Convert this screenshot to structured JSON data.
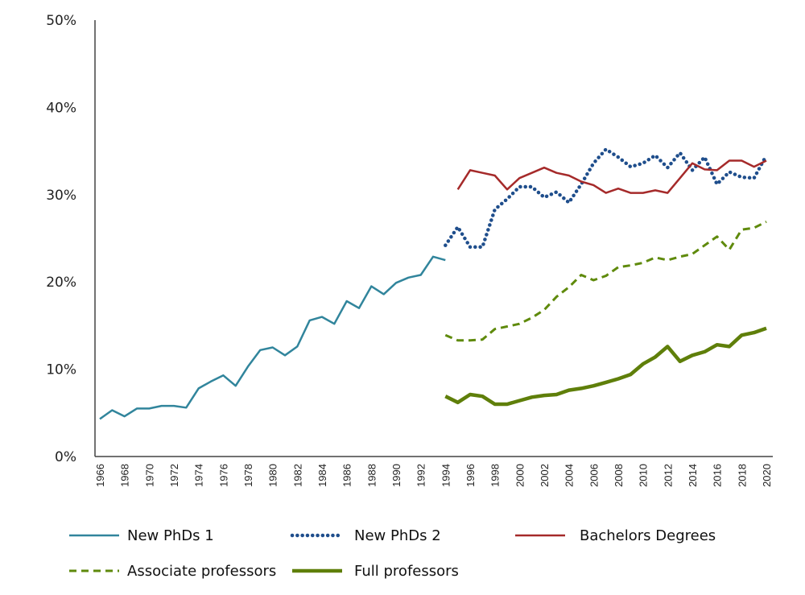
{
  "chart_data": {
    "type": "line",
    "title": "",
    "xlabel": "",
    "ylabel": "",
    "ylim": [
      0,
      50
    ],
    "yticks": [
      "0%",
      "10%",
      "20%",
      "30%",
      "40%",
      "50%"
    ],
    "ytick_values": [
      0,
      10,
      20,
      30,
      40,
      50
    ],
    "xlim": [
      1966,
      2020
    ],
    "xticks": [
      "1966",
      "1968",
      "1970",
      "1972",
      "1974",
      "1976",
      "1978",
      "1980",
      "1982",
      "1984",
      "1986",
      "1988",
      "1990",
      "1992",
      "1994",
      "1996",
      "1998",
      "2000",
      "2002",
      "2004",
      "2006",
      "2008",
      "2010",
      "2012",
      "2014",
      "2016",
      "2018",
      "2020"
    ],
    "grid": false,
    "legend_position": "bottom",
    "series": [
      {
        "name": "New PhDs 1",
        "color": "#31859c",
        "style": "solid",
        "x": [
          1966,
          1967,
          1968,
          1969,
          1970,
          1971,
          1972,
          1973,
          1974,
          1975,
          1976,
          1977,
          1978,
          1979,
          1980,
          1981,
          1982,
          1983,
          1984,
          1985,
          1986,
          1987,
          1988,
          1989,
          1990,
          1991,
          1992,
          1993,
          1994
        ],
        "values": [
          4.3,
          5.3,
          4.6,
          5.5,
          5.5,
          5.8,
          5.8,
          5.6,
          7.8,
          8.6,
          9.3,
          8.1,
          10.3,
          12.2,
          12.5,
          11.6,
          12.6,
          15.6,
          16.0,
          15.2,
          17.8,
          17.0,
          19.5,
          18.6,
          19.9,
          20.5,
          20.8,
          22.9,
          22.5
        ]
      },
      {
        "name": "New PhDs 2",
        "color": "#1f4e8c",
        "style": "dotted",
        "x": [
          1994,
          1995,
          1996,
          1997,
          1998,
          1999,
          2000,
          2001,
          2002,
          2003,
          2004,
          2005,
          2006,
          2007,
          2008,
          2009,
          2010,
          2011,
          2012,
          2013,
          2014,
          2015,
          2016,
          2017,
          2018,
          2019,
          2020
        ],
        "values": [
          24.2,
          26.3,
          24.0,
          24.0,
          28.3,
          29.5,
          30.9,
          30.9,
          29.7,
          30.3,
          29.1,
          31.2,
          33.6,
          35.2,
          34.3,
          33.2,
          33.6,
          34.5,
          33.1,
          34.8,
          32.8,
          34.3,
          31.2,
          32.6,
          32.0,
          31.9,
          34.5
        ]
      },
      {
        "name": "Bachelors Degrees",
        "color": "#a52a2a",
        "style": "solid",
        "x": [
          1995,
          1996,
          1997,
          1998,
          1999,
          2000,
          2001,
          2002,
          2003,
          2004,
          2005,
          2006,
          2007,
          2008,
          2009,
          2010,
          2011,
          2012,
          2013,
          2014,
          2015,
          2016,
          2017,
          2018,
          2019,
          2020
        ],
        "values": [
          30.6,
          32.8,
          32.5,
          32.2,
          30.6,
          31.9,
          32.5,
          33.1,
          32.5,
          32.2,
          31.5,
          31.1,
          30.2,
          30.7,
          30.2,
          30.2,
          30.5,
          30.2,
          31.9,
          33.6,
          32.9,
          32.8,
          33.9,
          33.9,
          33.2,
          33.9
        ]
      },
      {
        "name": "Associate professors",
        "color": "#5f8a0c",
        "style": "dashed",
        "x": [
          1994,
          1995,
          1996,
          1997,
          1998,
          1999,
          2000,
          2001,
          2002,
          2003,
          2004,
          2005,
          2006,
          2007,
          2008,
          2009,
          2010,
          2011,
          2012,
          2013,
          2014,
          2015,
          2016,
          2017,
          2018,
          2019,
          2020
        ],
        "values": [
          13.9,
          13.3,
          13.3,
          13.4,
          14.6,
          14.9,
          15.2,
          15.9,
          16.8,
          18.3,
          19.4,
          20.8,
          20.2,
          20.7,
          21.7,
          21.9,
          22.2,
          22.8,
          22.5,
          22.9,
          23.2,
          24.2,
          25.2,
          23.7,
          26.0,
          26.2,
          26.9
        ]
      },
      {
        "name": "Full professors",
        "color": "#5f7f0a",
        "style": "thick",
        "x": [
          1994,
          1995,
          1996,
          1997,
          1998,
          1999,
          2000,
          2001,
          2002,
          2003,
          2004,
          2005,
          2006,
          2007,
          2008,
          2009,
          2010,
          2011,
          2012,
          2013,
          2014,
          2015,
          2016,
          2017,
          2018,
          2019,
          2020
        ],
        "values": [
          6.9,
          6.2,
          7.1,
          6.9,
          6.0,
          6.0,
          6.4,
          6.8,
          7.0,
          7.1,
          7.6,
          7.8,
          8.1,
          8.5,
          8.9,
          9.4,
          10.6,
          11.4,
          12.6,
          10.9,
          11.6,
          12.0,
          12.8,
          12.6,
          13.9,
          14.2,
          14.7
        ]
      }
    ]
  }
}
